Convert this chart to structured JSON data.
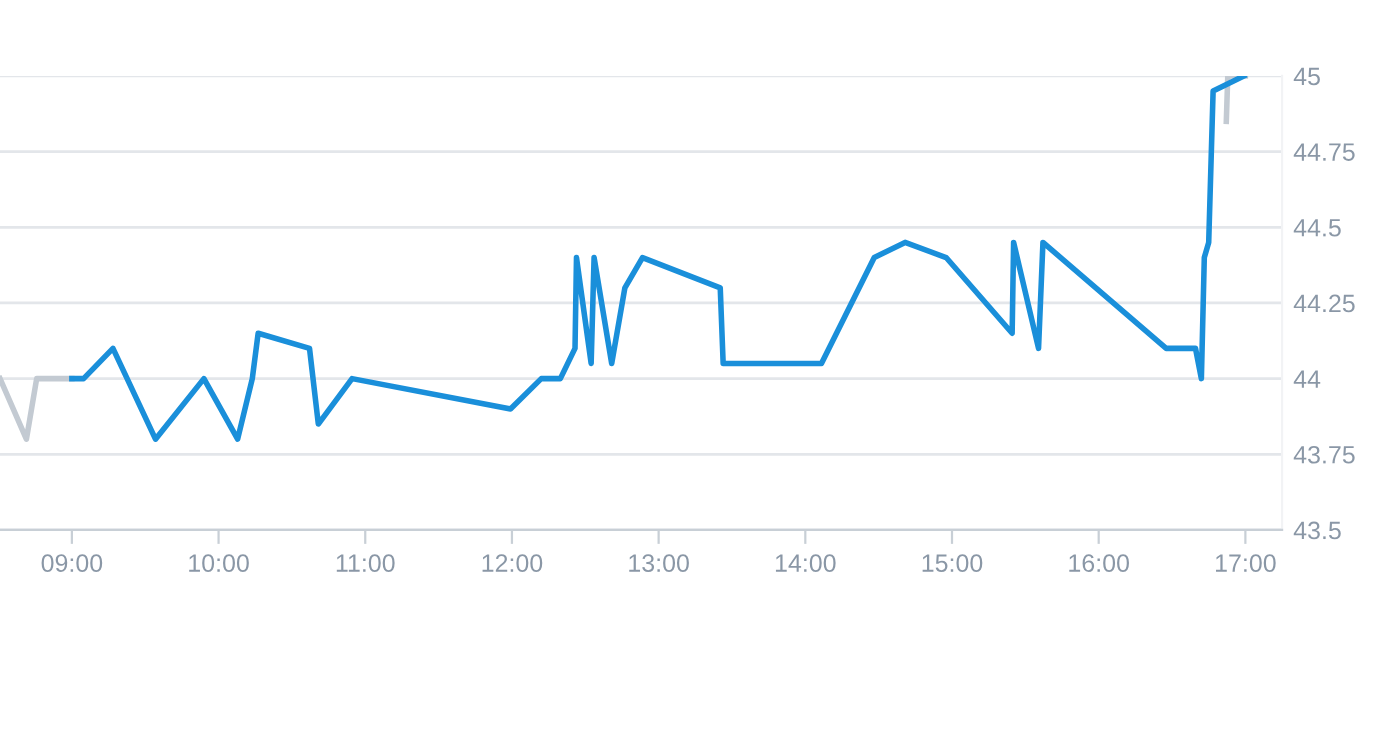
{
  "chart_data": {
    "type": "line",
    "xlim": [
      8.51,
      17.25
    ],
    "xticks": [
      {
        "value": 9,
        "label": "09:00"
      },
      {
        "value": 10,
        "label": "10:00"
      },
      {
        "value": 11,
        "label": "11:00"
      },
      {
        "value": 12,
        "label": "12:00"
      },
      {
        "value": 13,
        "label": "13:00"
      },
      {
        "value": 14,
        "label": "14:00"
      },
      {
        "value": 15,
        "label": "15:00"
      },
      {
        "value": 16,
        "label": "16:00"
      },
      {
        "value": 17,
        "label": "17:00"
      }
    ],
    "ylim": [
      43.5,
      45
    ],
    "yticks": [
      43.5,
      43.75,
      44,
      44.25,
      44.5,
      44.75,
      45
    ],
    "grid": "y",
    "marker": "none",
    "line_style": "solid",
    "series": [
      {
        "color": "#c3cad2",
        "x": [
          8.51,
          8.69,
          8.76,
          9.0
        ],
        "values": [
          44.0,
          43.8,
          44.0,
          44.0
        ]
      },
      {
        "color": "#c3cad2",
        "x": [
          16.87,
          16.88,
          17.0
        ],
        "values": [
          44.85,
          45.0,
          45.0
        ]
      },
      {
        "color": "#1a8fda",
        "x": [
          9.0,
          9.08,
          9.28,
          9.57,
          9.9,
          10.13,
          10.23,
          10.27,
          10.62,
          10.68,
          10.91,
          11.99,
          12.2,
          12.33,
          12.43,
          12.44,
          12.54,
          12.56,
          12.68,
          12.77,
          12.89,
          13.42,
          13.44,
          14.11,
          14.47,
          14.68,
          14.96,
          15.41,
          15.42,
          15.59,
          15.62,
          16.46,
          16.66,
          16.7,
          16.72,
          16.75,
          16.78,
          16.99
        ],
        "values": [
          44.0,
          44.0,
          44.1,
          43.8,
          44.0,
          43.8,
          44.0,
          44.15,
          44.1,
          43.85,
          44.0,
          43.9,
          44.0,
          44.0,
          44.1,
          44.4,
          44.05,
          44.4,
          44.05,
          44.3,
          44.4,
          44.3,
          44.05,
          44.05,
          44.4,
          44.45,
          44.4,
          44.15,
          44.45,
          44.1,
          44.45,
          44.1,
          44.1,
          44.0,
          44.4,
          44.45,
          44.95,
          45.0
        ]
      }
    ]
  }
}
